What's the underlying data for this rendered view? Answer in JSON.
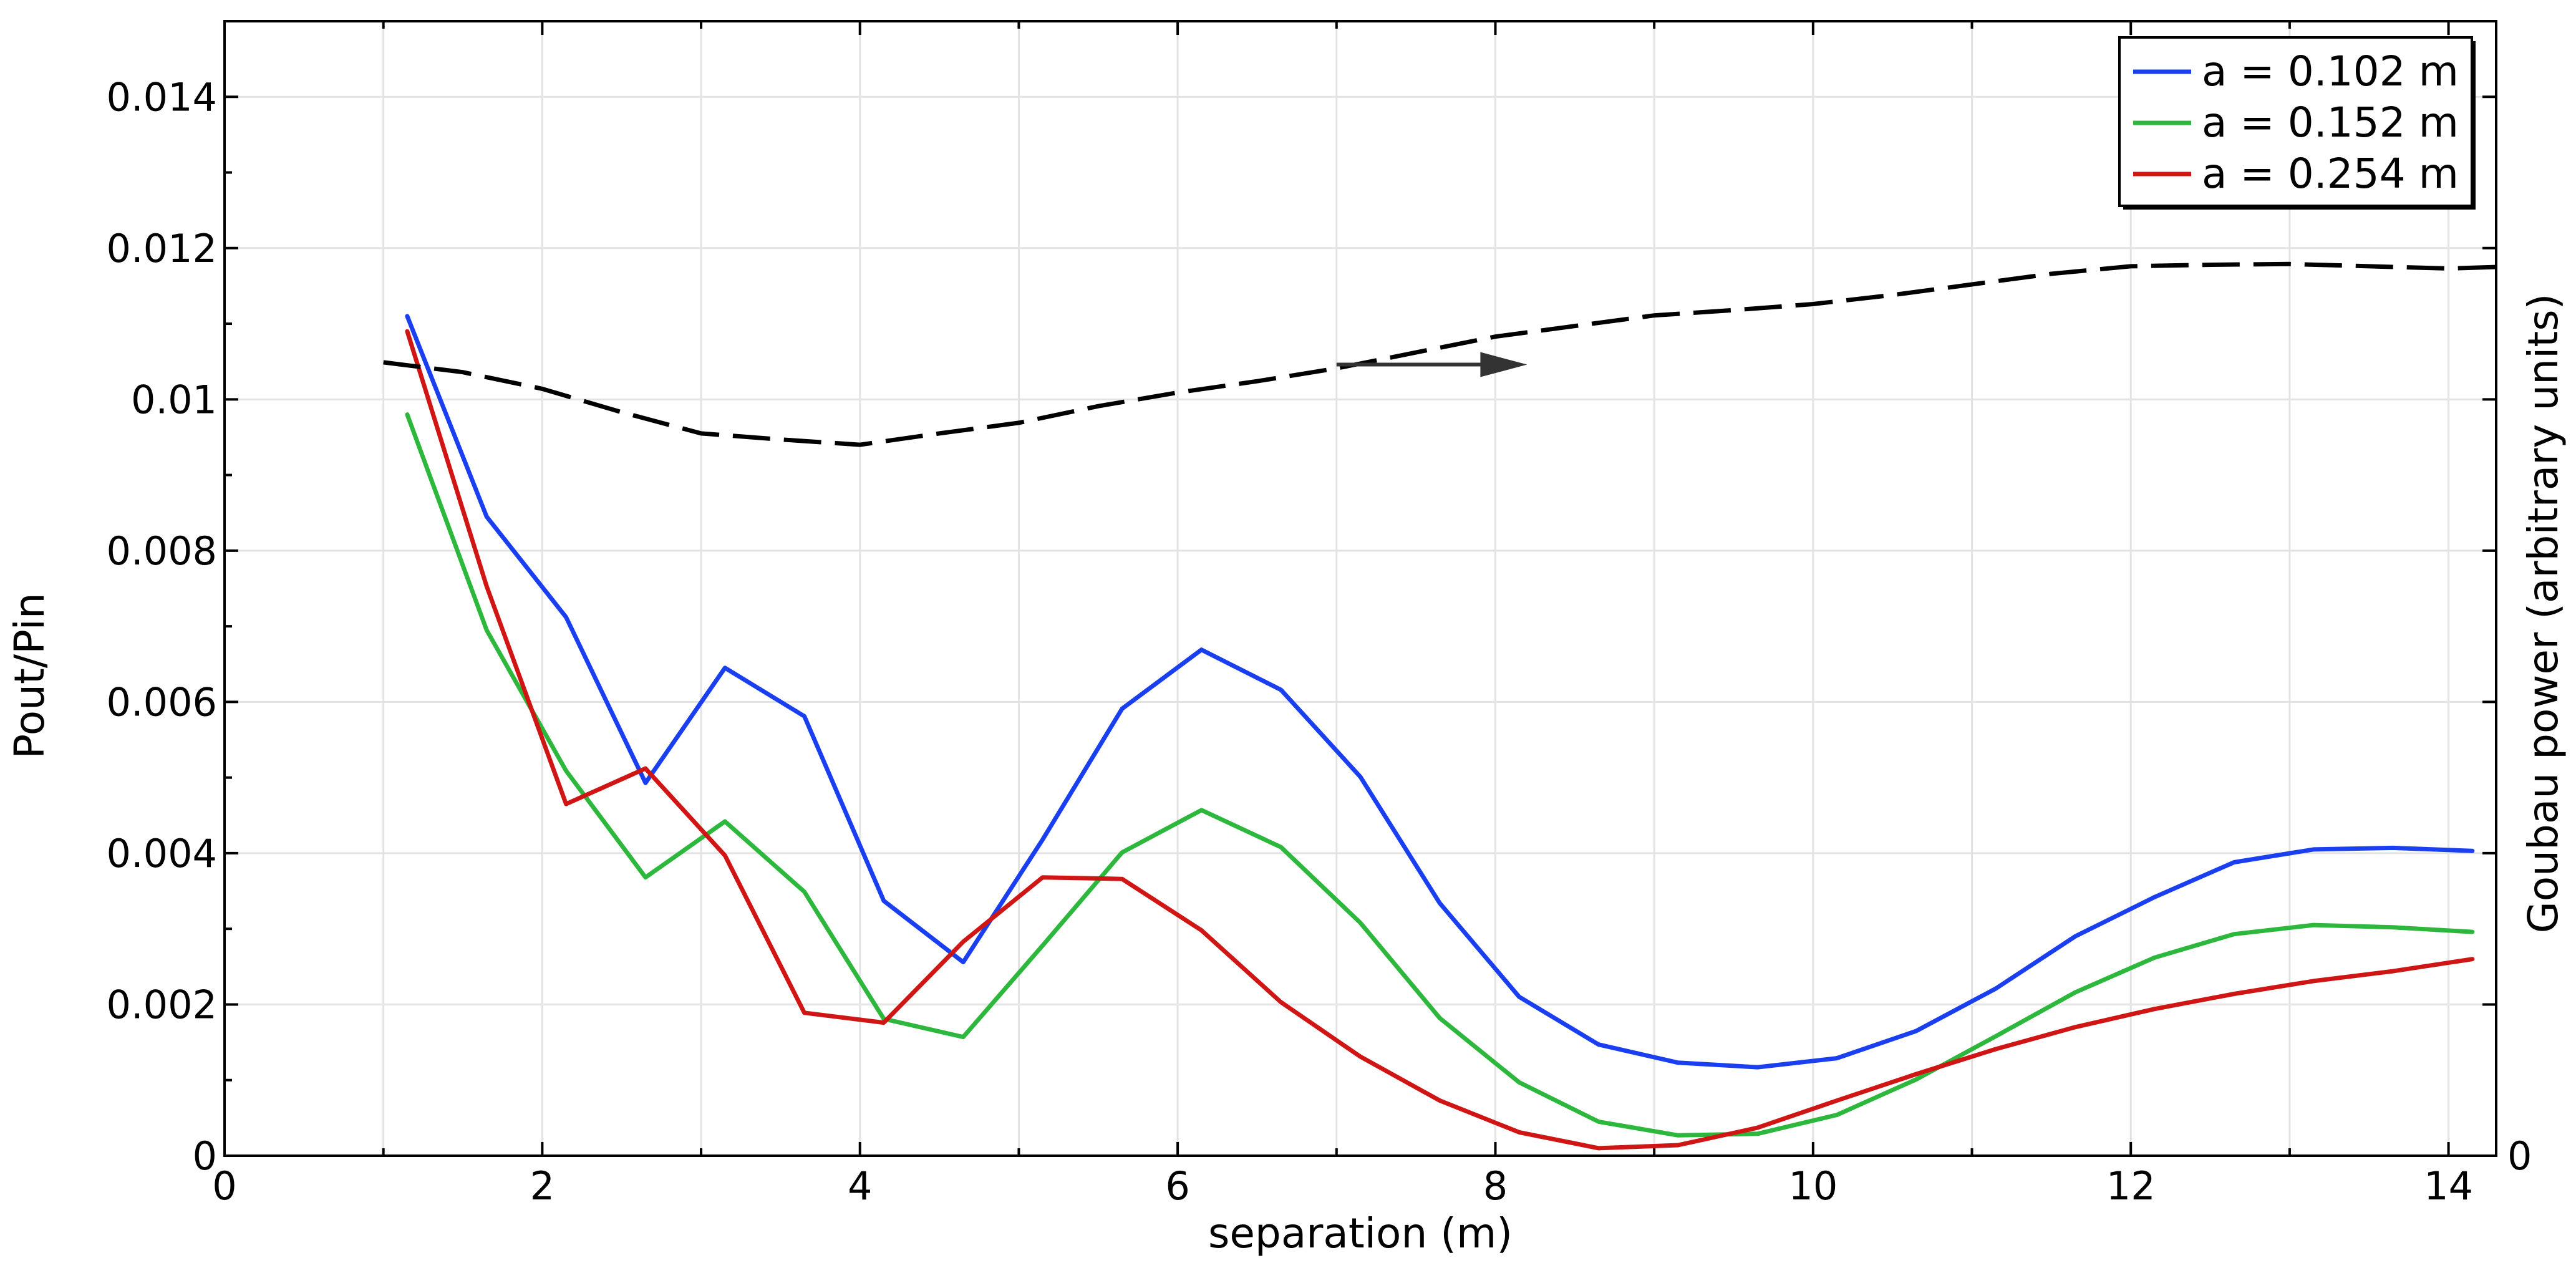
{
  "chart_data": {
    "type": "line",
    "title": "",
    "xlabel": "separation (m)",
    "ylabel": "Pout/Pin",
    "ylabel_right": "Goubau power (arbitrary units)",
    "xlim": [
      0,
      14.3
    ],
    "ylim": [
      0,
      0.015
    ],
    "xticks": [
      0,
      2,
      4,
      6,
      8,
      10,
      12,
      14
    ],
    "xtick_labels": [
      "0",
      "2",
      "4",
      "6",
      "8",
      "10",
      "12",
      "14"
    ],
    "yticks": [
      0,
      0.002,
      0.004,
      0.006,
      0.008,
      0.01,
      0.012,
      0.014
    ],
    "ytick_labels": [
      "0",
      "0.002",
      "0.004",
      "0.006",
      "0.008",
      "0.01",
      "0.012",
      "0.014"
    ],
    "right_tick_label": "0",
    "grid": true,
    "legend_position": "top-right",
    "x": [
      1.15,
      1.65,
      2.15,
      2.65,
      3.15,
      3.65,
      4.15,
      4.65,
      5.15,
      5.65,
      6.15,
      6.65,
      7.15,
      7.65,
      8.15,
      8.65,
      9.15,
      9.65,
      10.15,
      10.65,
      11.15,
      11.65,
      12.15,
      12.65,
      13.15,
      13.65,
      14.15
    ],
    "series": [
      {
        "name": "a = 0.102 m",
        "color": "#1a3ff0",
        "values": [
          0.0111,
          0.00845,
          0.00712,
          0.00493,
          0.00645,
          0.00581,
          0.00337,
          0.00256,
          0.00418,
          0.00591,
          0.00669,
          0.00616,
          0.00501,
          0.00334,
          0.0021,
          0.00147,
          0.00123,
          0.00117,
          0.00129,
          0.00165,
          0.00221,
          0.0029,
          0.00342,
          0.00388,
          0.00405,
          0.00407,
          0.00403
        ]
      },
      {
        "name": "a = 0.152 m",
        "color": "#2db83d",
        "values": [
          0.0098,
          0.00695,
          0.00509,
          0.00368,
          0.00442,
          0.00349,
          0.00181,
          0.00157,
          0.00278,
          0.00401,
          0.00457,
          0.00408,
          0.00308,
          0.00182,
          0.00097,
          0.00045,
          0.00027,
          0.00029,
          0.00054,
          0.00101,
          0.00158,
          0.00216,
          0.00262,
          0.00293,
          0.00305,
          0.00302,
          0.00296
        ]
      },
      {
        "name": "a = 0.254 m",
        "color": "#d01515",
        "values": [
          0.0109,
          0.00753,
          0.00465,
          0.00512,
          0.00397,
          0.00189,
          0.00176,
          0.00283,
          0.00368,
          0.00366,
          0.00298,
          0.00203,
          0.00131,
          0.00073,
          0.00031,
          0.0001,
          0.00014,
          0.00037,
          0.00073,
          0.00108,
          0.00141,
          0.0017,
          0.00194,
          0.00214,
          0.00231,
          0.00244,
          0.0026
        ]
      },
      {
        "name": "Goubau power",
        "color": "#000000",
        "axis": "right",
        "style": "dashed",
        "x": [
          1.0,
          1.5,
          2.0,
          2.5,
          3.0,
          3.5,
          4.0,
          4.5,
          5.0,
          5.5,
          6.0,
          6.5,
          7.0,
          7.5,
          8.0,
          8.5,
          9.0,
          9.5,
          10.0,
          10.5,
          11.0,
          11.5,
          12.0,
          12.5,
          13.0,
          13.5,
          14.0,
          14.3
        ],
        "values": [
          0.01049,
          0.01036,
          0.01014,
          0.00983,
          0.00955,
          0.00947,
          0.0094,
          0.00955,
          0.00969,
          0.00991,
          0.01009,
          0.01024,
          0.01041,
          0.01062,
          0.01083,
          0.01097,
          0.01111,
          0.01118,
          0.01126,
          0.01138,
          0.01152,
          0.01166,
          0.01176,
          0.01178,
          0.01179,
          0.01176,
          0.01173,
          0.01175
        ]
      }
    ],
    "annotations": [
      {
        "type": "arrow",
        "direction": "right",
        "from": [
          7.0,
          0.01046
        ],
        "to": [
          8.2,
          0.01046
        ],
        "meaning": "curve belongs to right axis"
      }
    ]
  }
}
